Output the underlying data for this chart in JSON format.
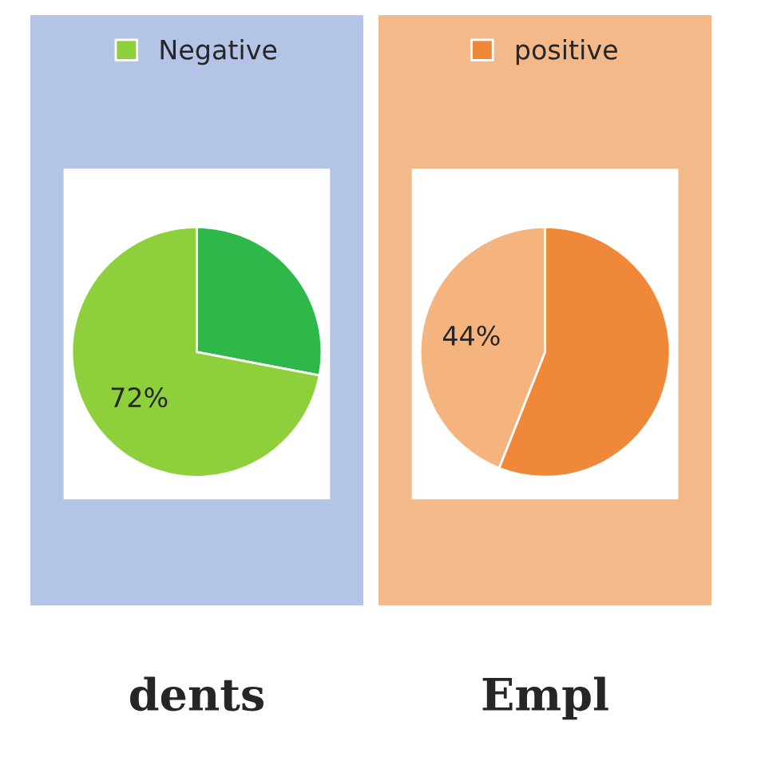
{
  "chart_data": [
    {
      "type": "pie",
      "title": "dents",
      "categories": [
        null,
        "Negative"
      ],
      "values": [
        28,
        72
      ],
      "colors": [
        "#2fb84a",
        "#8dd03b"
      ],
      "value_labels": [
        null,
        "72%"
      ],
      "legend": "top"
    },
    {
      "type": "pie",
      "title": "Empl",
      "categories": [
        "positive",
        null
      ],
      "values": [
        56,
        44
      ],
      "colors": [
        "#f0883a",
        "#f5b47e"
      ],
      "value_labels": [
        null,
        "44%"
      ],
      "legend": "top"
    }
  ]
}
